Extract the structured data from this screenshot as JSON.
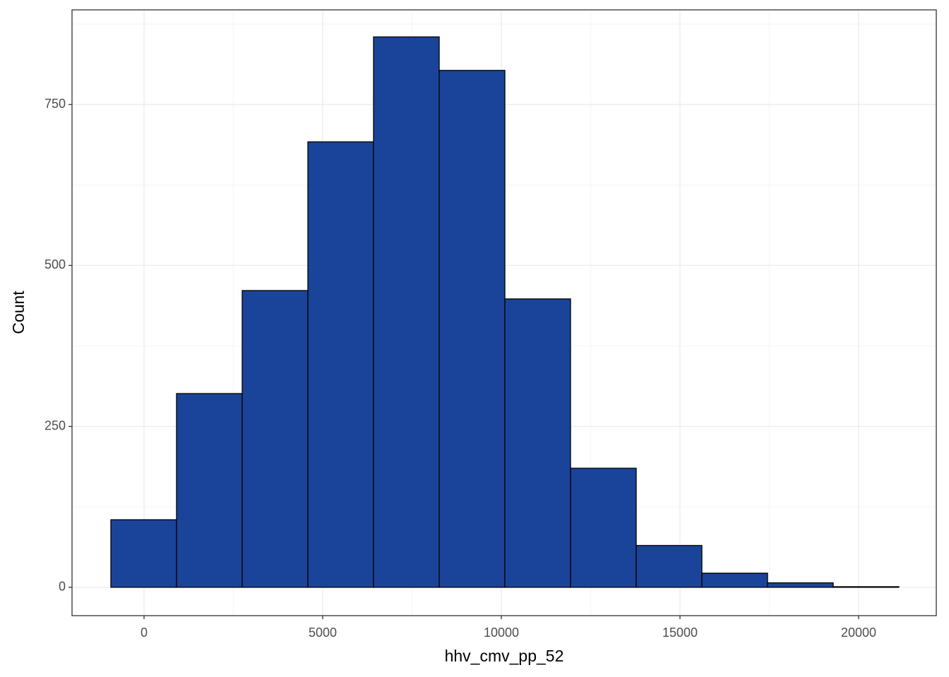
{
  "chart_data": {
    "type": "histogram",
    "x_label": "hhv_cmv_pp_52",
    "y_label": "Count",
    "bins": [
      -929,
      909,
      2747,
      4585,
      6423,
      8261,
      10099,
      11937,
      13775,
      15613,
      17451,
      19289,
      21127
    ],
    "values": [
      105,
      301,
      461,
      692,
      855,
      803,
      448,
      185,
      65,
      22,
      7,
      1
    ],
    "color": "#1a4499",
    "edge_color": "#000000",
    "xlim": [
      -2016,
      22174
    ],
    "xticks": [
      0,
      5000,
      10000,
      15000,
      20000
    ],
    "ylim": [
      -44,
      897
    ],
    "yticks": [
      0,
      250,
      500,
      750
    ],
    "grid": true
  }
}
